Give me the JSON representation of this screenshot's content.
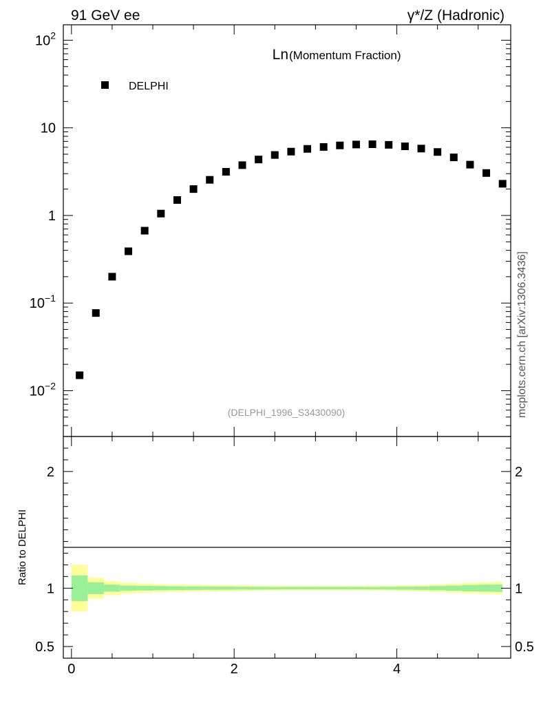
{
  "header": {
    "left_label": "91 GeV ee",
    "right_label": "γ*/Z (Hadronic)"
  },
  "side_label": "mcplots.cern.ch [arXiv:1306.3436]",
  "chart_data": [
    {
      "type": "scatter",
      "title_main": "Ln",
      "title_sub": "(Momentum Fraction)",
      "analysis_id": "(DELPHI_1996_S3430090)",
      "yscale": "log",
      "ylim": [
        0.003,
        150
      ],
      "xlim": [
        -0.1,
        5.4
      ],
      "ytick_labels": [
        {
          "base": "10",
          "exp": "2",
          "value": 100
        },
        {
          "base": "10",
          "exp": "",
          "value": 10
        },
        {
          "base": "1",
          "exp": "",
          "value": 1
        },
        {
          "base": "10",
          "exp": "−1",
          "value": 0.1
        },
        {
          "base": "10",
          "exp": "−2",
          "value": 0.01
        }
      ],
      "legend": {
        "label": "DELPHI",
        "position": "top-left"
      },
      "series": [
        {
          "name": "DELPHI",
          "x": [
            0.1,
            0.3,
            0.5,
            0.7,
            0.9,
            1.1,
            1.3,
            1.5,
            1.7,
            1.9,
            2.1,
            2.3,
            2.5,
            2.7,
            2.9,
            3.1,
            3.3,
            3.5,
            3.7,
            3.9,
            4.1,
            4.3,
            4.5,
            4.7,
            4.9,
            5.1,
            5.3
          ],
          "y": [
            0.015,
            0.077,
            0.2,
            0.39,
            0.67,
            1.05,
            1.5,
            2.0,
            2.55,
            3.15,
            3.75,
            4.35,
            4.9,
            5.35,
            5.75,
            6.05,
            6.3,
            6.45,
            6.5,
            6.4,
            6.15,
            5.8,
            5.3,
            4.6,
            3.8,
            3.05,
            2.3
          ]
        }
      ]
    },
    {
      "type": "area",
      "ylabel": "Ratio to DELPHI",
      "ylim": [
        0.4,
        2.3
      ],
      "xlim": [
        -0.1,
        5.4
      ],
      "xtick_labels": [
        "0",
        "2",
        "4"
      ],
      "xtick_values": [
        0,
        2,
        4
      ],
      "ytick_labels": [
        "2",
        "1",
        "0.5"
      ],
      "ytick_values": [
        2,
        1,
        0.5
      ],
      "bands": {
        "x_edges": [
          0.0,
          0.2,
          0.4,
          0.6,
          0.8,
          1.0,
          1.2,
          1.4,
          1.6,
          1.8,
          2.0,
          2.2,
          2.4,
          2.6,
          2.8,
          3.0,
          3.2,
          3.4,
          3.6,
          3.8,
          4.0,
          4.2,
          4.4,
          4.6,
          4.8,
          5.0,
          5.2,
          5.4
        ],
        "stat_frac": [
          0.11,
          0.05,
          0.03,
          0.022,
          0.02,
          0.018,
          0.016,
          0.015,
          0.014,
          0.013,
          0.012,
          0.012,
          0.011,
          0.011,
          0.011,
          0.011,
          0.011,
          0.011,
          0.011,
          0.012,
          0.013,
          0.015,
          0.018,
          0.022,
          0.027,
          0.03,
          0.032
        ],
        "total_frac": [
          0.2,
          0.09,
          0.06,
          0.045,
          0.04,
          0.035,
          0.032,
          0.03,
          0.028,
          0.026,
          0.024,
          0.022,
          0.021,
          0.02,
          0.02,
          0.02,
          0.02,
          0.02,
          0.021,
          0.022,
          0.024,
          0.027,
          0.032,
          0.038,
          0.045,
          0.05,
          0.055
        ],
        "stat_color": "#99f099",
        "total_color": "#ffff99"
      }
    }
  ]
}
